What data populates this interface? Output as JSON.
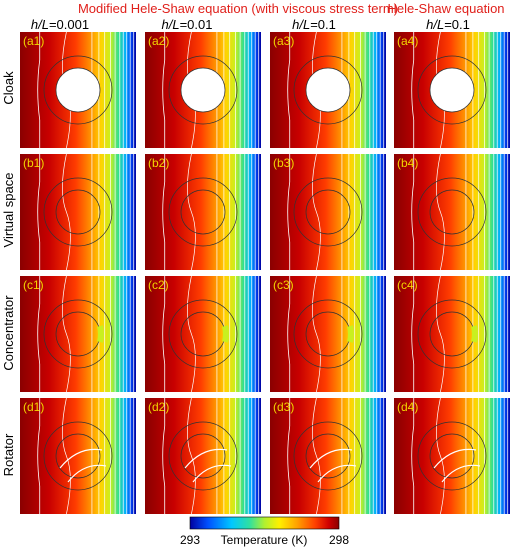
{
  "header": {
    "modified_title": "Modified Hele-Shaw equation (with viscous stress term)",
    "hs_title": "Hele-Shaw equation",
    "columns": [
      {
        "var": "h/L",
        "value": "=0.001"
      },
      {
        "var": "h/L",
        "value": "=0.01"
      },
      {
        "var": "h/L",
        "value": "=0.1"
      },
      {
        "var": "h/L",
        "value": "=0.1"
      }
    ]
  },
  "rows": [
    "Cloak",
    "Virtual space",
    "Concentrator",
    "Rotator"
  ],
  "panel_labels": [
    [
      "(a1)",
      "(a2)",
      "(a3)",
      "(a4)"
    ],
    [
      "(b1)",
      "(b2)",
      "(b3)",
      "(b4)"
    ],
    [
      "(c1)",
      "(c2)",
      "(c3)",
      "(c4)"
    ],
    [
      "(d1)",
      "(d2)",
      "(d3)",
      "(d4)"
    ]
  ],
  "colorbar": {
    "min": "293",
    "max": "298",
    "label": "Temperature (K)",
    "colors": [
      "#0000a0",
      "#0050ff",
      "#00c8ff",
      "#30e0a0",
      "#b0f030",
      "#fff000",
      "#ffa000",
      "#ff4000",
      "#d00000",
      "#8a0000"
    ]
  }
}
